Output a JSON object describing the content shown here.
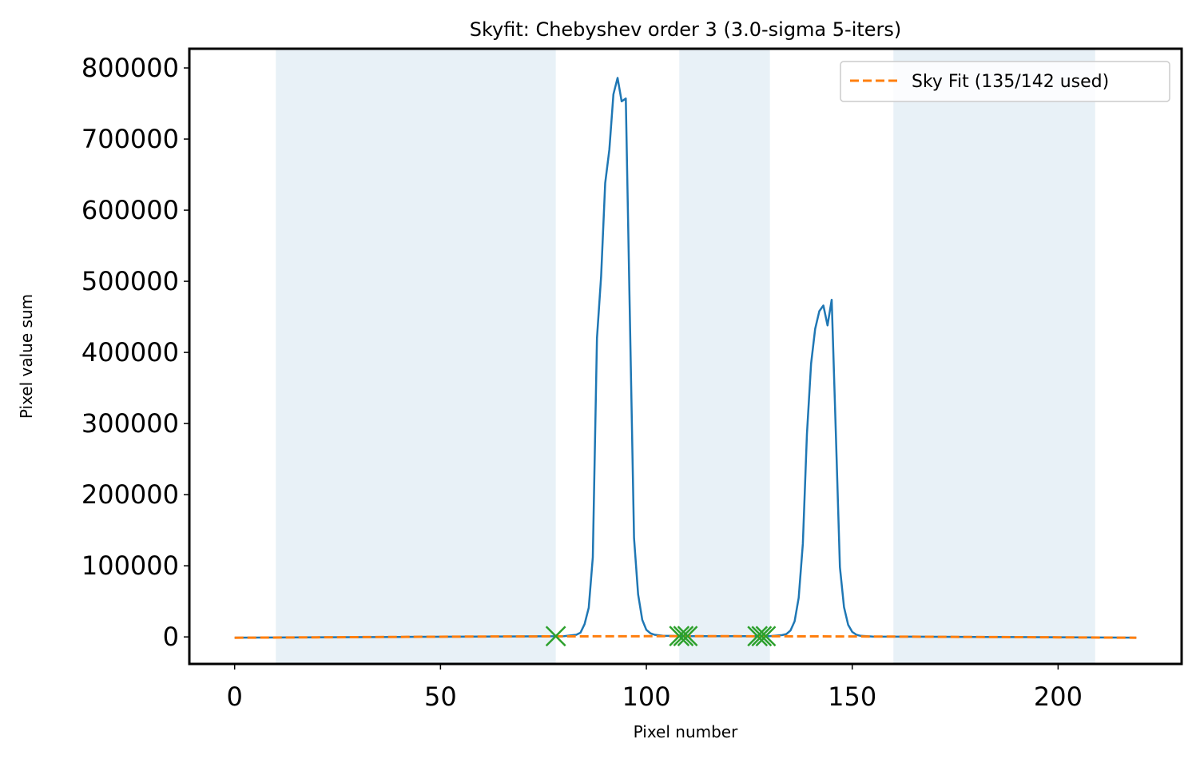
{
  "chart_data": {
    "type": "line",
    "title": "Skyfit: Chebyshev order 3 (3.0-sigma 5-iters)",
    "xlabel": "Pixel number",
    "ylabel": "Pixel value sum",
    "xlim": [
      -11,
      230
    ],
    "ylim": [
      -38000,
      827000
    ],
    "xticks": [
      0,
      50,
      100,
      150,
      200
    ],
    "xtick_labels": [
      "0",
      "50",
      "100",
      "150",
      "200"
    ],
    "yticks": [
      0,
      100000,
      200000,
      300000,
      400000,
      500000,
      600000,
      700000,
      800000
    ],
    "ytick_labels": [
      "0",
      "100000",
      "200000",
      "300000",
      "400000",
      "500000",
      "600000",
      "700000",
      "800000"
    ],
    "grid": false,
    "legend": {
      "placement": "top-right",
      "entries": [
        "Sky Fit (135/142 used)"
      ]
    },
    "sky_regions": [
      [
        10,
        78
      ],
      [
        108,
        130
      ],
      [
        160,
        209
      ]
    ],
    "colors": {
      "data": "#1f77b4",
      "fit": "#ff7f0e",
      "rejected": "#2ca02c",
      "region": "#1f77b4"
    },
    "series": [
      {
        "role": "data",
        "x": [
          0,
          40,
          80,
          83,
          84,
          85,
          86,
          87,
          88,
          89,
          90,
          91,
          92,
          93,
          94,
          95,
          96,
          97,
          98,
          99,
          100,
          101,
          102,
          104,
          110,
          120,
          130,
          133,
          134,
          135,
          136,
          137,
          138,
          139,
          140,
          141,
          142,
          143,
          144,
          145,
          146,
          147,
          148,
          149,
          150,
          151,
          152,
          155,
          180,
          219
        ],
        "y": [
          -1000,
          0,
          1000,
          3000,
          6000,
          18000,
          41000,
          112000,
          420000,
          507000,
          638000,
          685000,
          763000,
          786000,
          753000,
          757000,
          450000,
          139000,
          60000,
          24000,
          10000,
          5000,
          3000,
          1500,
          1000,
          1000,
          1000,
          2500,
          4000,
          9000,
          22000,
          55000,
          131000,
          285000,
          384000,
          433000,
          458000,
          466000,
          438000,
          474000,
          290000,
          98000,
          42000,
          17000,
          7000,
          3000,
          1500,
          500,
          0,
          -1000
        ]
      },
      {
        "name": "Sky Fit (135/142 used)",
        "role": "fit",
        "x": [
          0,
          20,
          40,
          60,
          80,
          100,
          120,
          140,
          160,
          180,
          200,
          219
        ],
        "y": [
          -1200,
          -600,
          0,
          500,
          800,
          1000,
          1000,
          800,
          400,
          -100,
          -600,
          -1200
        ]
      },
      {
        "role": "rejected",
        "x": [
          78,
          108,
          109,
          110,
          127,
          128,
          129
        ],
        "y": [
          1000,
          1200,
          1200,
          1200,
          1000,
          1000,
          1000
        ]
      }
    ]
  }
}
